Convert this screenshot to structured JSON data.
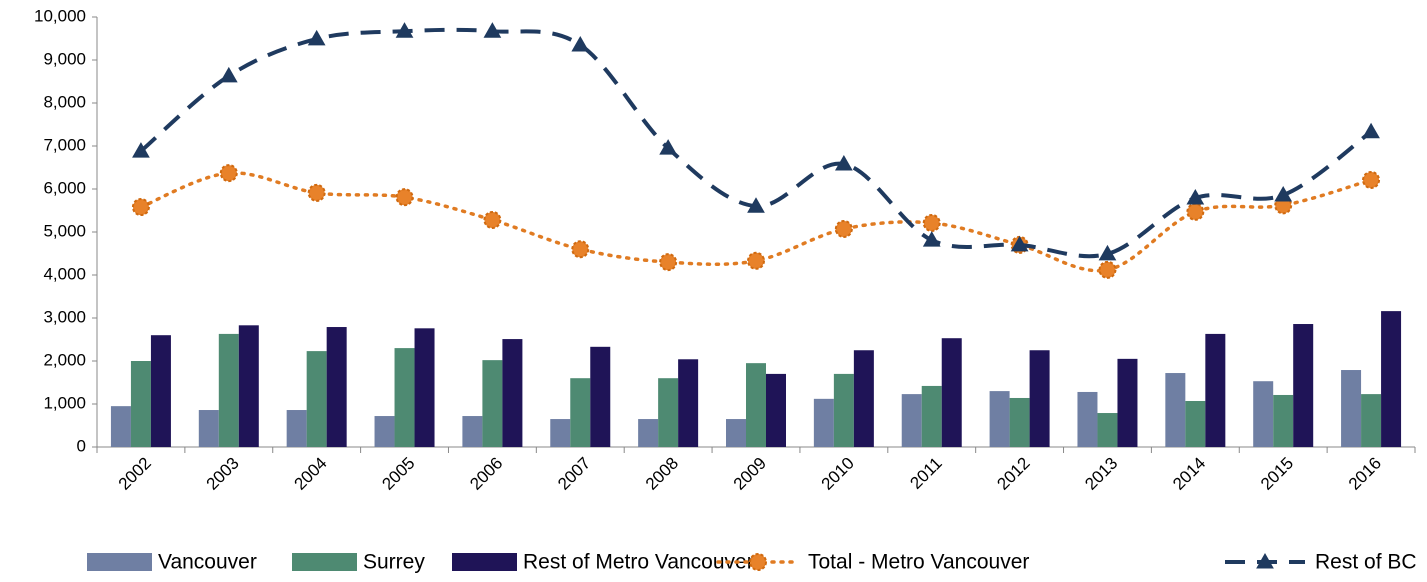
{
  "chart_data": {
    "type": "bar-line",
    "categories": [
      "2002",
      "2003",
      "2004",
      "2005",
      "2006",
      "2007",
      "2008",
      "2009",
      "2010",
      "2011",
      "2012",
      "2013",
      "2014",
      "2015",
      "2016"
    ],
    "series": [
      {
        "name": "Vancouver",
        "type": "bar",
        "color": "#6f7fa3",
        "values": [
          950,
          860,
          860,
          720,
          720,
          650,
          650,
          650,
          1120,
          1230,
          1300,
          1280,
          1720,
          1530,
          1790
        ]
      },
      {
        "name": "Surrey",
        "type": "bar",
        "color": "#4e8a72",
        "values": [
          2000,
          2630,
          2230,
          2300,
          2020,
          1600,
          1600,
          1950,
          1700,
          1420,
          1140,
          790,
          1070,
          1210,
          1230
        ]
      },
      {
        "name": "Rest of Metro Vancouver",
        "type": "bar",
        "color": "#1f1457",
        "values": [
          2600,
          2830,
          2790,
          2760,
          2510,
          2330,
          2040,
          1700,
          2250,
          2530,
          2250,
          2050,
          2630,
          2860,
          3160
        ]
      },
      {
        "name": "Total - Metro Vancouver",
        "type": "line",
        "style": "dotted",
        "marker": "circle",
        "color": "#e07b22",
        "values": [
          5580,
          6370,
          5910,
          5810,
          5280,
          4600,
          4300,
          4330,
          5070,
          5210,
          4700,
          4120,
          5470,
          5620,
          6210
        ]
      },
      {
        "name": "Rest of BC",
        "type": "line",
        "style": "dashed",
        "marker": "triangle",
        "color": "#1f3a5f",
        "values": [
          6880,
          8630,
          9490,
          9670,
          9670,
          9350,
          6950,
          5600,
          6580,
          4810,
          4700,
          4490,
          5790,
          5860,
          7330
        ]
      }
    ],
    "ylim": [
      0,
      10000
    ],
    "yticks": [
      0,
      {
        "value": 1000,
        "label": "1,000"
      },
      {
        "value": 2000,
        "label": "2,000"
      },
      {
        "value": 3000,
        "label": "3,000"
      },
      {
        "value": 4000,
        "label": "4,000"
      },
      {
        "value": 5000,
        "label": "5,000"
      },
      {
        "value": 6000,
        "label": "6,000"
      },
      {
        "value": 7000,
        "label": "7,000"
      },
      {
        "value": 8000,
        "label": "8,000"
      },
      {
        "value": 9000,
        "label": "9,000"
      },
      {
        "value": 10000,
        "label": "10,000"
      }
    ],
    "legend": "bottom",
    "grid": false
  }
}
